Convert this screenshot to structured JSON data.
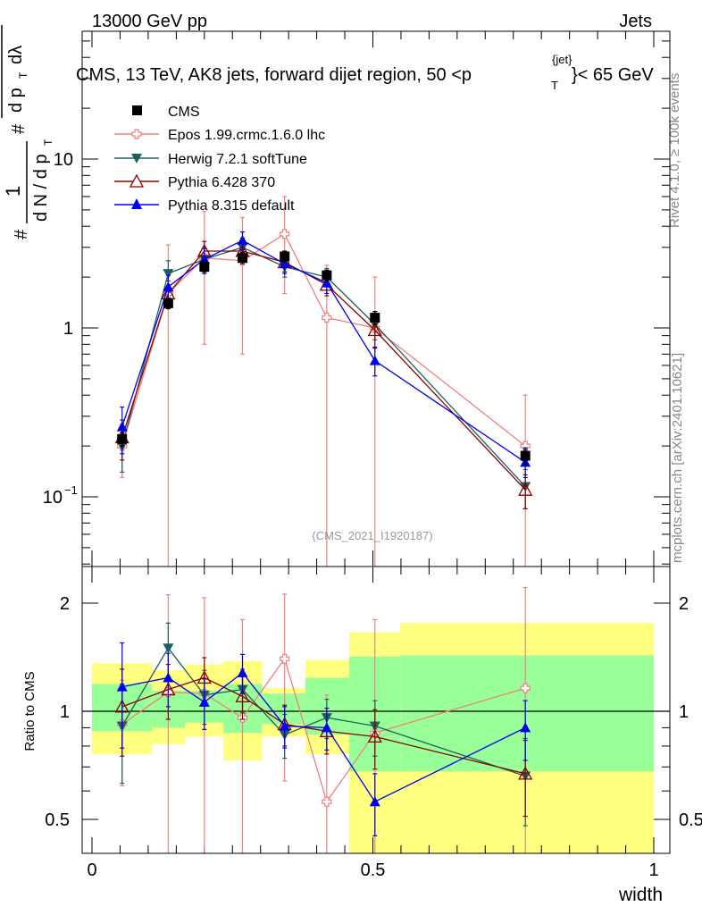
{
  "header": {
    "left": "13000 GeV pp",
    "right": "Jets",
    "side_top": "Rivet 4.1.0, ≥ 100k events",
    "side_bottom": "mcplots.cern.ch [arXiv:2401.10621]"
  },
  "colors": {
    "cms": "#000000",
    "epos": "#f08080",
    "herwig": "#1e6060",
    "pythia6": "#8b0000",
    "pythia8": "#0000ee",
    "band_outer": "#ffff80",
    "band_inner": "#99ff99"
  },
  "chart_data": [
    {
      "type": "scatter",
      "title": "CMS, 13 TeV, AK8 jets, forward dijet region, 50 < p_T^{jet} < 65 GeV",
      "title_parts": {
        "main": "CMS, 13 TeV, AK8 jets, forward dijet region, 50 <p",
        "sup": "{jet}",
        "sub": "T",
        "tail": "}< 65 GeV"
      },
      "ylabel": "1/(dN/dp_T) d²N/(dp_T dλ)",
      "ylabel_parts": {
        "n1": "1",
        "d1": "d N / d p",
        "n2": "d",
        "n3": "N",
        "d2": "d p",
        "d3": "dλ",
        "hash": "#",
        "T": "T",
        "two": "2"
      },
      "yscale": "log",
      "ylim": [
        0.04,
        60
      ],
      "yticks": [
        {
          "value": 10,
          "label": "10"
        },
        {
          "value": 1,
          "label": "1"
        },
        {
          "value": 0.1,
          "label": "10",
          "sup": "−1"
        }
      ],
      "watermark": "(CMS_2021_I1920187)",
      "legend_position": "top-left",
      "x": [
        0.0536,
        0.1357,
        0.2,
        0.2679,
        0.3429,
        0.4179,
        0.5036,
        0.7714
      ],
      "series": [
        {
          "name": "CMS",
          "key": "cms",
          "marker": "square",
          "values": [
            0.22,
            1.4,
            2.3,
            2.6,
            2.65,
            2.05,
            1.15,
            0.175
          ],
          "err": [
            0.02,
            0.1,
            0.2,
            0.2,
            0.2,
            0.15,
            0.1,
            0.02
          ]
        },
        {
          "name": "Epos 1.99.crmc.1.6.0 lhc",
          "key": "epos",
          "marker": "cross",
          "values": [
            0.2,
            1.6,
            2.6,
            2.5,
            3.6,
            1.15,
            1.0,
            0.2
          ],
          "err_lo": [
            0.07,
            1.6,
            1.8,
            1.8,
            2.0,
            1.15,
            1.0,
            0.2
          ],
          "err_hi": [
            0.07,
            1.5,
            2.3,
            2.0,
            2.4,
            1.2,
            1.0,
            0.2
          ]
        },
        {
          "name": "Herwig 7.2.1 softTune",
          "key": "herwig",
          "marker": "triangle-down",
          "values": [
            0.2,
            2.1,
            2.55,
            3.0,
            2.3,
            2.0,
            1.05,
            0.115
          ],
          "err": [
            0.06,
            0.4,
            0.4,
            0.4,
            0.3,
            0.25,
            0.2,
            0.03
          ]
        },
        {
          "name": "Pythia 6.428 370",
          "key": "pythia6",
          "marker": "triangle-open",
          "values": [
            0.225,
            1.6,
            2.85,
            2.85,
            2.45,
            1.8,
            0.97,
            0.11
          ],
          "err": [
            0.06,
            0.3,
            0.4,
            0.4,
            0.3,
            0.25,
            0.2,
            0.025
          ]
        },
        {
          "name": "Pythia 8.315 default",
          "key": "pythia8",
          "marker": "triangle-up",
          "values": [
            0.26,
            1.75,
            2.55,
            3.3,
            2.4,
            1.85,
            0.64,
            0.16
          ],
          "err": [
            0.08,
            0.3,
            0.4,
            0.4,
            0.3,
            0.25,
            0.12,
            0.03
          ]
        }
      ]
    },
    {
      "type": "scatter",
      "title": "Ratio to CMS",
      "ylabel": "Ratio to CMS",
      "xlabel": "width",
      "yscale": "log",
      "ylim": [
        0.4,
        2.4
      ],
      "yticks": [
        {
          "value": 2,
          "label": "2"
        },
        {
          "value": 1,
          "label": "1"
        },
        {
          "value": 0.5,
          "label": "0.5"
        }
      ],
      "xlim": [
        -0.02,
        1.0
      ],
      "xticks": [
        {
          "value": 0,
          "label": "0"
        },
        {
          "value": 0.5,
          "label": "0.5"
        },
        {
          "value": 1,
          "label": "1"
        }
      ],
      "reference_line": 1,
      "bands": [
        {
          "x0": 0.0,
          "x1": 0.107,
          "outer": [
            0.76,
            1.36
          ],
          "inner": [
            0.88,
            1.19
          ]
        },
        {
          "x0": 0.107,
          "x1": 0.166,
          "outer": [
            0.81,
            1.3
          ],
          "inner": [
            0.9,
            1.14
          ]
        },
        {
          "x0": 0.166,
          "x1": 0.234,
          "outer": [
            0.85,
            1.35
          ],
          "inner": [
            0.93,
            1.14
          ]
        },
        {
          "x0": 0.234,
          "x1": 0.303,
          "outer": [
            0.73,
            1.38
          ],
          "inner": [
            0.87,
            1.19
          ]
        },
        {
          "x0": 0.303,
          "x1": 0.38,
          "outer": [
            0.85,
            1.16
          ],
          "inner": [
            0.92,
            1.12
          ]
        },
        {
          "x0": 0.38,
          "x1": 0.458,
          "outer": [
            0.76,
            1.39
          ],
          "inner": [
            0.86,
            1.24
          ]
        },
        {
          "x0": 0.458,
          "x1": 0.549,
          "outer": [
            0.36,
            1.66
          ],
          "inner": [
            0.68,
            1.42
          ]
        },
        {
          "x0": 0.549,
          "x1": 1.0,
          "outer": [
            0.35,
            1.76
          ],
          "inner": [
            0.68,
            1.43
          ]
        }
      ],
      "series": [
        {
          "name": "Epos 1.99.crmc.1.6.0 lhc",
          "key": "epos",
          "marker": "cross",
          "values": [
            0.92,
            1.13,
            1.12,
            0.96,
            1.4,
            0.56,
            0.87,
            1.16
          ],
          "err_lo": [
            0.3,
            1.2,
            1.0,
            0.9,
            0.76,
            0.56,
            0.87,
            1.16
          ],
          "err_hi": [
            0.3,
            0.98,
            0.95,
            0.84,
            0.72,
            0.55,
            0.93,
            1.05
          ]
        },
        {
          "name": "Herwig 7.2.1 softTune",
          "key": "herwig",
          "marker": "triangle-down",
          "values": [
            0.91,
            1.5,
            1.11,
            1.15,
            0.86,
            0.96,
            0.91,
            0.66
          ],
          "err": [
            0.28,
            0.26,
            0.19,
            0.16,
            0.12,
            0.12,
            0.16,
            0.18
          ]
        },
        {
          "name": "Pythia 6.428 370",
          "key": "pythia6",
          "marker": "triangle-open",
          "values": [
            1.03,
            1.15,
            1.24,
            1.1,
            0.92,
            0.88,
            0.85,
            0.67
          ],
          "err": [
            0.28,
            0.2,
            0.17,
            0.15,
            0.12,
            0.12,
            0.16,
            0.16
          ]
        },
        {
          "name": "Pythia 8.315 default",
          "key": "pythia8",
          "marker": "triangle-up",
          "values": [
            1.17,
            1.24,
            1.06,
            1.28,
            0.91,
            0.9,
            0.56,
            0.9
          ],
          "err": [
            0.38,
            0.21,
            0.17,
            0.16,
            0.12,
            0.12,
            0.11,
            0.17
          ]
        }
      ]
    }
  ]
}
